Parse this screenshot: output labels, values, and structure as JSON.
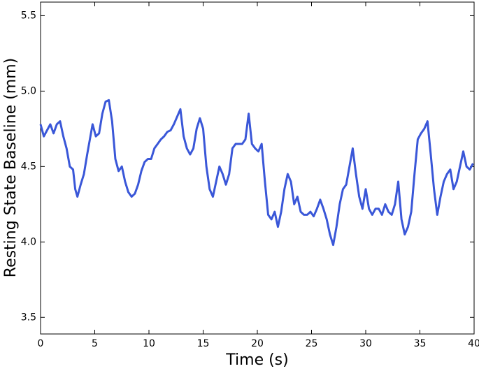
{
  "chart_data": {
    "type": "line",
    "xlabel": "Time (s)",
    "ylabel": "Resting State Baseline (mm)",
    "x": [
      0,
      0.3,
      0.6,
      0.9,
      1.2,
      1.5,
      1.8,
      2.1,
      2.4,
      2.7,
      3.0,
      3.2,
      3.4,
      3.7,
      4.0,
      4.3,
      4.6,
      4.8,
      5.1,
      5.4,
      5.7,
      6.0,
      6.3,
      6.6,
      6.9,
      7.2,
      7.5,
      7.8,
      8.1,
      8.4,
      8.7,
      9.0,
      9.3,
      9.6,
      9.9,
      10.2,
      10.5,
      10.8,
      11.1,
      11.4,
      11.7,
      12.0,
      12.3,
      12.6,
      12.9,
      13.2,
      13.5,
      13.8,
      14.1,
      14.4,
      14.7,
      15.0,
      15.3,
      15.6,
      15.9,
      16.2,
      16.5,
      16.8,
      17.1,
      17.4,
      17.7,
      18.0,
      18.3,
      18.6,
      18.9,
      19.2,
      19.5,
      19.8,
      20.1,
      20.4,
      20.7,
      21.0,
      21.3,
      21.6,
      21.9,
      22.2,
      22.5,
      22.8,
      23.1,
      23.4,
      23.7,
      24.0,
      24.3,
      24.6,
      24.9,
      25.2,
      25.5,
      25.8,
      26.1,
      26.4,
      26.7,
      27.0,
      27.3,
      27.6,
      27.9,
      28.2,
      28.5,
      28.8,
      29.1,
      29.4,
      29.7,
      30.0,
      30.3,
      30.6,
      30.9,
      31.2,
      31.5,
      31.8,
      32.1,
      32.4,
      32.7,
      33.0,
      33.3,
      33.6,
      33.9,
      34.2,
      34.5,
      34.8,
      35.1,
      35.4,
      35.7,
      36.0,
      36.3,
      36.6,
      36.9,
      37.2,
      37.5,
      37.8,
      38.1,
      38.4,
      38.7,
      39.0,
      39.3,
      39.6,
      39.9
    ],
    "series": [
      {
        "color": "#3a57d8",
        "values": [
          4.78,
          4.7,
          4.74,
          4.78,
          4.72,
          4.78,
          4.8,
          4.7,
          4.62,
          4.5,
          4.48,
          4.35,
          4.3,
          4.38,
          4.45,
          4.58,
          4.7,
          4.78,
          4.7,
          4.72,
          4.85,
          4.93,
          4.94,
          4.8,
          4.55,
          4.47,
          4.5,
          4.4,
          4.33,
          4.3,
          4.32,
          4.38,
          4.47,
          4.53,
          4.55,
          4.55,
          4.62,
          4.65,
          4.68,
          4.7,
          4.73,
          4.74,
          4.78,
          4.83,
          4.88,
          4.7,
          4.62,
          4.58,
          4.62,
          4.75,
          4.82,
          4.75,
          4.5,
          4.35,
          4.3,
          4.4,
          4.5,
          4.45,
          4.38,
          4.45,
          4.62,
          4.65,
          4.65,
          4.65,
          4.68,
          4.85,
          4.65,
          4.62,
          4.6,
          4.65,
          4.4,
          4.18,
          4.15,
          4.2,
          4.1,
          4.2,
          4.35,
          4.45,
          4.4,
          4.25,
          4.3,
          4.2,
          4.18,
          4.18,
          4.2,
          4.17,
          4.22,
          4.28,
          4.22,
          4.15,
          4.05,
          3.98,
          4.1,
          4.25,
          4.35,
          4.38,
          4.5,
          4.62,
          4.45,
          4.3,
          4.22,
          4.35,
          4.22,
          4.18,
          4.22,
          4.22,
          4.18,
          4.25,
          4.2,
          4.18,
          4.25,
          4.4,
          4.15,
          4.05,
          4.1,
          4.2,
          4.45,
          4.68,
          4.72,
          4.75,
          4.8,
          4.58,
          4.35,
          4.18,
          4.3,
          4.4,
          4.45,
          4.48,
          4.35,
          4.4,
          4.5,
          4.6,
          4.5,
          4.48,
          4.52
        ]
      }
    ],
    "xlim": [
      0,
      40
    ],
    "xticks": [
      0,
      5,
      10,
      15,
      20,
      25,
      30,
      35,
      40
    ],
    "ylim": [
      3.39,
      5.59
    ],
    "yticks": [
      3.5,
      {
        "value": 4,
        "label": "4.0"
      },
      4.5,
      {
        "value": 5,
        "label": "5.0"
      },
      5.5
    ],
    "grid": false
  }
}
